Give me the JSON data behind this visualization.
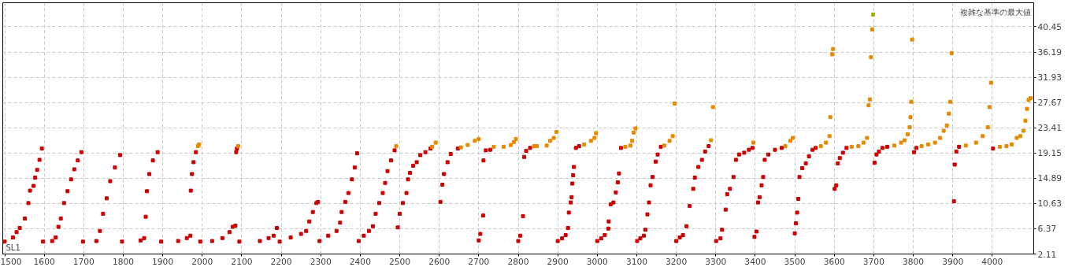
{
  "chart_data": {
    "type": "scatter",
    "ylabel": "複雑な基準の最大値",
    "xlabel": "SL1",
    "xlim": [
      1495,
      4105
    ],
    "ylim": [
      2.11,
      44.5
    ],
    "xticks": [
      1500,
      1600,
      1700,
      1800,
      1900,
      2000,
      2100,
      2200,
      2300,
      2400,
      2500,
      2600,
      2700,
      2800,
      2900,
      3000,
      3100,
      3200,
      3300,
      3400,
      3500,
      3600,
      3700,
      3800,
      3900,
      4000
    ],
    "yticks": [
      2.11,
      6.37,
      10.63,
      14.89,
      19.15,
      23.41,
      27.67,
      31.93,
      36.19,
      40.45
    ],
    "grid": true,
    "marker": "square",
    "series": [
      {
        "color": "#cc0000",
        "x": [
          1500,
          1521,
          1530,
          1538,
          1551,
          1560,
          1564,
          1573,
          1577,
          1582,
          1588,
          1594,
          1597,
          1620,
          1629,
          1636,
          1642,
          1650,
          1659,
          1668,
          1676,
          1685,
          1694,
          1698,
          1732,
          1741,
          1749,
          1758,
          1767,
          1779,
          1792,
          1797,
          1844,
          1853,
          1857,
          1860,
          1866,
          1875,
          1887,
          1896,
          1939,
          1961,
          1970,
          1971,
          1974,
          1978,
          1984,
          1995,
          2025,
          2051,
          2069,
          2077,
          2084,
          2086,
          2088,
          2094,
          2146,
          2168,
          2181,
          2189,
          2196,
          2224,
          2250,
          2263,
          2271,
          2280,
          2289,
          2293,
          2297,
          2319,
          2340,
          2349,
          2353,
          2362,
          2370,
          2379,
          2386,
          2392,
          2396,
          2409,
          2422,
          2432,
          2439,
          2448,
          2457,
          2463,
          2469,
          2478,
          2487,
          2495,
          2500,
          2508,
          2517,
          2521,
          2526,
          2534,
          2543,
          2552,
          2565,
          2578,
          2603,
          2608,
          2612,
          2621,
          2629,
          2647,
          2700,
          2704,
          2711,
          2712,
          2718,
          2729,
          2800,
          2805,
          2812,
          2815,
          2820,
          2830,
          2900,
          2911,
          2920,
          2926,
          2928,
          2933,
          2935,
          2937,
          2939,
          2941,
          2946,
          2954,
          3000,
          3010,
          3019,
          3028,
          3029,
          3034,
          3041,
          3047,
          3052,
          3055,
          3060,
          3101,
          3109,
          3118,
          3122,
          3127,
          3131,
          3135,
          3140,
          3148,
          3153,
          3161,
          3200,
          3209,
          3217,
          3226,
          3234,
          3243,
          3247,
          3256,
          3265,
          3273,
          3282,
          3301,
          3312,
          3316,
          3325,
          3329,
          3336,
          3345,
          3351,
          3359,
          3372,
          3384,
          3393,
          3398,
          3403,
          3407,
          3411,
          3416,
          3420,
          3424,
          3433,
          3450,
          3467,
          3500,
          3503,
          3506,
          3509,
          3512,
          3519,
          3528,
          3536,
          3545,
          3553,
          3601,
          3605,
          3609,
          3614,
          3622,
          3631,
          3702,
          3707,
          3713,
          3722,
          3734,
          3802,
          3808,
          3903,
          3905,
          3909,
          3916,
          4002
        ],
        "values": [
          4.2,
          4.9,
          5.8,
          6.5,
          8.1,
          10.7,
          12.8,
          13.6,
          15.0,
          16.3,
          18.0,
          19.9,
          4.2,
          4.3,
          4.9,
          6.7,
          8.1,
          10.7,
          12.7,
          14.7,
          16.4,
          17.9,
          19.3,
          4.2,
          4.3,
          6.0,
          8.9,
          11.5,
          14.4,
          16.7,
          18.8,
          4.2,
          4.4,
          4.8,
          8.4,
          12.7,
          15.6,
          17.9,
          19.3,
          4.2,
          4.3,
          4.8,
          5.2,
          12.8,
          15.6,
          17.6,
          19.3,
          4.2,
          4.3,
          4.8,
          5.8,
          6.7,
          6.9,
          19.3,
          19.9,
          4.2,
          4.3,
          4.8,
          5.2,
          6.5,
          4.2,
          4.9,
          5.5,
          6.0,
          7.6,
          9.2,
          10.7,
          10.9,
          4.3,
          5.2,
          6.0,
          7.4,
          9.2,
          10.9,
          12.4,
          14.7,
          16.7,
          19.1,
          4.3,
          5.2,
          6.0,
          6.8,
          8.9,
          10.7,
          12.4,
          14.1,
          16.1,
          17.9,
          19.6,
          6.6,
          8.9,
          10.7,
          12.4,
          14.7,
          15.8,
          17.0,
          17.6,
          18.8,
          19.3,
          19.9,
          10.9,
          13.8,
          15.6,
          17.6,
          19.0,
          19.9,
          4.4,
          5.5,
          8.6,
          17.9,
          19.6,
          19.7,
          4.3,
          5.2,
          8.5,
          18.5,
          19.5,
          20.0,
          4.3,
          4.75,
          5.3,
          6.5,
          9.1,
          10.8,
          11.7,
          14.0,
          15.4,
          16.8,
          20.0,
          20.3,
          4.3,
          4.75,
          5.3,
          6.4,
          7.6,
          10.5,
          10.8,
          12.5,
          14.2,
          15.7,
          20.0,
          4.3,
          4.75,
          5.2,
          6.2,
          8.8,
          10.8,
          13.7,
          15.1,
          17.7,
          18.9,
          20.2,
          4.3,
          4.9,
          5.3,
          6.8,
          10.2,
          13.1,
          15.0,
          16.8,
          18.0,
          19.4,
          20.3,
          4.3,
          4.75,
          6.2,
          9.6,
          12.2,
          13.1,
          15.1,
          18.0,
          18.9,
          19.2,
          19.7,
          20.0,
          5.0,
          5.9,
          10.8,
          11.7,
          13.7,
          15.1,
          18.0,
          18.9,
          19.7,
          20.0,
          5.6,
          7.3,
          9.1,
          11.4,
          15.1,
          16.6,
          17.4,
          18.6,
          19.7,
          20.0,
          13.1,
          13.7,
          17.4,
          18.3,
          19.2,
          20.0,
          17.5,
          18.9,
          19.4,
          20.0,
          20.2,
          19.3,
          20.0,
          11.0,
          17.2,
          19.4,
          20.2,
          19.9
        ]
      },
      {
        "color": "#e68a00",
        "x": [
          1989,
          1992,
          2091,
          2491,
          2582,
          2591,
          2655,
          2672,
          2690,
          2700,
          2738,
          2763,
          2781,
          2789,
          2794,
          2840,
          2847,
          2872,
          2881,
          2890,
          2897,
          2967,
          2984,
          2993,
          2997,
          3071,
          3084,
          3088,
          3092,
          3097,
          3170,
          3183,
          3191,
          3196,
          3288,
          3293,
          3395,
          3476,
          3489,
          3495,
          3566,
          3579,
          3588,
          3590,
          3595,
          3597,
          3644,
          3661,
          3674,
          3683,
          3687,
          3690,
          3693,
          3696,
          3752,
          3769,
          3778,
          3786,
          3791,
          3793,
          3795,
          3797,
          3821,
          3838,
          3855,
          3868,
          3877,
          3885,
          3890,
          3894,
          3897,
          3933,
          3959,
          3976,
          3989,
          3993,
          3997,
          4019,
          4036,
          4049,
          4062,
          4071,
          4079,
          4084,
          4088,
          4092,
          4097
        ],
        "values": [
          20.3,
          20.6,
          20.3,
          20.3,
          20.2,
          20.9,
          20.1,
          20.5,
          21.2,
          21.5,
          20.2,
          20.2,
          20.5,
          21.0,
          21.5,
          20.3,
          20.3,
          20.4,
          21.2,
          21.7,
          22.7,
          20.6,
          21.2,
          21.7,
          22.5,
          20.2,
          20.4,
          21.2,
          22.6,
          23.3,
          20.4,
          21.2,
          22.0,
          27.5,
          21.3,
          26.9,
          20.9,
          20.3,
          21.2,
          21.7,
          20.3,
          20.9,
          22.0,
          25.2,
          35.8,
          36.7,
          20.2,
          20.3,
          20.9,
          21.7,
          27.2,
          28.2,
          35.3,
          40.0,
          20.4,
          20.9,
          21.3,
          22.3,
          23.5,
          25.2,
          27.8,
          38.3,
          20.3,
          20.6,
          20.9,
          21.7,
          22.9,
          23.8,
          25.8,
          27.8,
          36.0,
          20.4,
          20.9,
          22.0,
          23.5,
          26.9,
          31.0,
          20.2,
          20.3,
          20.6,
          21.7,
          22.0,
          22.9,
          24.6,
          26.6,
          28.1,
          28.4
        ]
      },
      {
        "color": "#99b300",
        "x": [
          3698
        ],
        "values": [
          42.5
        ]
      }
    ]
  }
}
